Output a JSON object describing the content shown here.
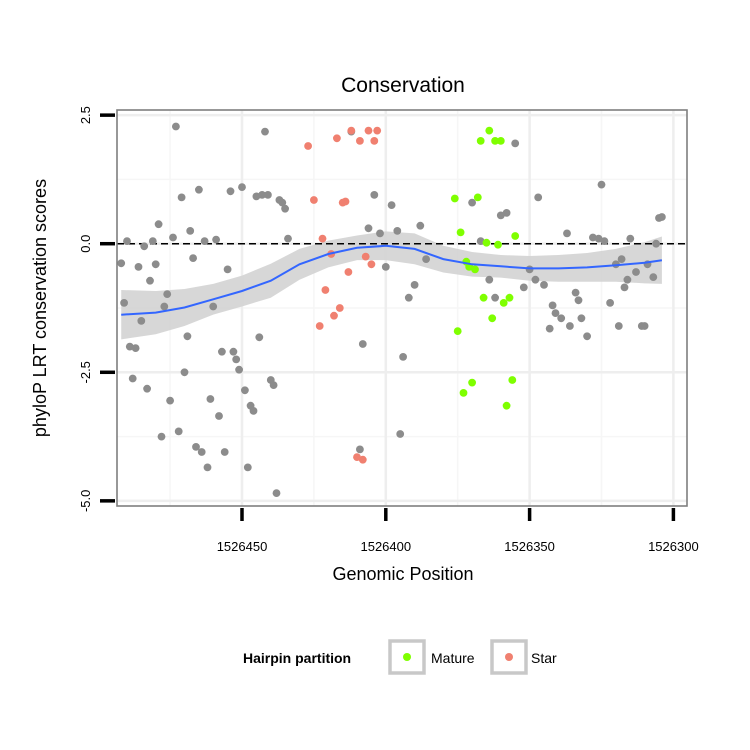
{
  "chart_data": {
    "type": "scatter",
    "title": "Conservation",
    "xlabel": "Genomic Position",
    "ylabel": "phyloP LRT conservation scores",
    "xlim": [
      1526493,
      1526303
    ],
    "x_reversed": true,
    "ylim": [
      -5.1,
      2.6
    ],
    "x_ticks": [
      1526450,
      1526400,
      1526350,
      1526300
    ],
    "x_tick_labels": [
      "1526450",
      "1526400",
      "1526350",
      "1526300"
    ],
    "y_ticks": [
      -5.0,
      -2.5,
      0.0,
      2.5
    ],
    "y_tick_labels": [
      "-5.0",
      "-2.5",
      "0.0",
      "2.5"
    ],
    "grid": true,
    "reference_line": {
      "y": 0,
      "style": "dashed",
      "color": "#000000"
    },
    "legend": {
      "title": "Hairpin partition",
      "position": "bottom",
      "entries": [
        {
          "label": "Mature",
          "color": "#7FFF00"
        },
        {
          "label": "Star",
          "color": "#F08070"
        }
      ]
    },
    "colors": {
      "other": "#8C8C8C",
      "mature": "#7FFF00",
      "star": "#F08070",
      "smooth": "#3366FF",
      "ribbon": "#D3D3D3"
    },
    "series": [
      {
        "group": "other",
        "points": [
          [
            1526492,
            -0.38
          ],
          [
            1526491,
            -1.15
          ],
          [
            1526490,
            0.05
          ],
          [
            1526489,
            -2.0
          ],
          [
            1526488,
            -2.62
          ],
          [
            1526487,
            -2.03
          ],
          [
            1526486,
            -0.45
          ],
          [
            1526485,
            -1.5
          ],
          [
            1526484,
            -0.05
          ],
          [
            1526483,
            -2.82
          ],
          [
            1526482,
            -0.72
          ],
          [
            1526481,
            0.05
          ],
          [
            1526480,
            -0.4
          ],
          [
            1526479,
            0.38
          ],
          [
            1526478,
            -3.75
          ],
          [
            1526477,
            -1.22
          ],
          [
            1526476,
            -0.98
          ],
          [
            1526475,
            -3.05
          ],
          [
            1526474,
            0.12
          ],
          [
            1526473,
            2.28
          ],
          [
            1526472,
            -3.65
          ],
          [
            1526471,
            0.9
          ],
          [
            1526470,
            -2.5
          ],
          [
            1526469,
            -1.8
          ],
          [
            1526468,
            0.25
          ],
          [
            1526467,
            -0.28
          ],
          [
            1526466,
            -3.95
          ],
          [
            1526465,
            1.05
          ],
          [
            1526464,
            -4.05
          ],
          [
            1526463,
            0.05
          ],
          [
            1526462,
            -4.35
          ],
          [
            1526461,
            -3.02
          ],
          [
            1526460,
            -1.22
          ],
          [
            1526459,
            0.08
          ],
          [
            1526458,
            -3.35
          ],
          [
            1526457,
            -2.1
          ],
          [
            1526456,
            -4.05
          ],
          [
            1526455,
            -0.5
          ],
          [
            1526454,
            1.02
          ],
          [
            1526453,
            -2.1
          ],
          [
            1526452,
            -2.25
          ],
          [
            1526451,
            -2.45
          ],
          [
            1526450,
            1.1
          ],
          [
            1526449,
            -2.85
          ],
          [
            1526448,
            -4.35
          ],
          [
            1526447,
            -3.15
          ],
          [
            1526446,
            -3.25
          ],
          [
            1526445,
            0.92
          ],
          [
            1526444,
            -1.82
          ],
          [
            1526443,
            0.95
          ],
          [
            1526442,
            2.18
          ],
          [
            1526441,
            0.95
          ],
          [
            1526440,
            -2.65
          ],
          [
            1526439,
            -2.75
          ],
          [
            1526438,
            -4.85
          ],
          [
            1526437,
            0.85
          ],
          [
            1526436,
            0.8
          ],
          [
            1526435,
            0.68
          ],
          [
            1526434,
            0.1
          ],
          [
            1526412,
            2.18
          ],
          [
            1526409,
            -4.0
          ],
          [
            1526408,
            -1.95
          ],
          [
            1526406,
            0.3
          ],
          [
            1526404,
            0.95
          ],
          [
            1526402,
            0.2
          ],
          [
            1526400,
            -0.45
          ],
          [
            1526398,
            0.75
          ],
          [
            1526396,
            0.25
          ],
          [
            1526395,
            -3.7
          ],
          [
            1526394,
            -2.2
          ],
          [
            1526392,
            -1.05
          ],
          [
            1526390,
            -0.8
          ],
          [
            1526388,
            0.35
          ],
          [
            1526386,
            -0.3
          ],
          [
            1526370,
            0.8
          ],
          [
            1526367,
            0.05
          ],
          [
            1526364,
            -0.7
          ],
          [
            1526362,
            -1.05
          ],
          [
            1526360,
            0.55
          ],
          [
            1526358,
            0.6
          ],
          [
            1526355,
            1.95
          ],
          [
            1526352,
            -0.85
          ],
          [
            1526350,
            -0.5
          ],
          [
            1526348,
            -0.7
          ],
          [
            1526347,
            0.9
          ],
          [
            1526345,
            -0.8
          ],
          [
            1526343,
            -1.65
          ],
          [
            1526342,
            -1.2
          ],
          [
            1526341,
            -1.35
          ],
          [
            1526339,
            -1.45
          ],
          [
            1526337,
            0.2
          ],
          [
            1526336,
            -1.6
          ],
          [
            1526334,
            -0.95
          ],
          [
            1526332,
            -1.45
          ],
          [
            1526330,
            -1.8
          ],
          [
            1526328,
            0.12
          ],
          [
            1526326,
            0.1
          ],
          [
            1526324,
            0.05
          ],
          [
            1526322,
            -1.15
          ],
          [
            1526320,
            -0.4
          ],
          [
            1526319,
            -1.6
          ],
          [
            1526317,
            -0.85
          ],
          [
            1526315,
            0.1
          ],
          [
            1526313,
            -0.55
          ],
          [
            1526311,
            -1.6
          ],
          [
            1526310,
            -1.6
          ],
          [
            1526309,
            -0.4
          ],
          [
            1526307,
            -0.65
          ],
          [
            1526306,
            0.0
          ],
          [
            1526305,
            0.5
          ],
          [
            1526304,
            0.52
          ],
          [
            1526325,
            1.15
          ],
          [
            1526318,
            -0.3
          ],
          [
            1526316,
            -0.7
          ],
          [
            1526333,
            -1.1
          ]
        ]
      },
      {
        "group": "star",
        "points": [
          [
            1526427,
            1.9
          ],
          [
            1526425,
            0.85
          ],
          [
            1526423,
            -1.6
          ],
          [
            1526422,
            0.1
          ],
          [
            1526421,
            -0.9
          ],
          [
            1526419,
            -0.2
          ],
          [
            1526418,
            -1.4
          ],
          [
            1526417,
            2.05
          ],
          [
            1526416,
            -1.25
          ],
          [
            1526415,
            0.8
          ],
          [
            1526414,
            0.82
          ],
          [
            1526413,
            -0.55
          ],
          [
            1526412,
            2.2
          ],
          [
            1526410,
            -4.15
          ],
          [
            1526409,
            2.0
          ],
          [
            1526408,
            -4.2
          ],
          [
            1526407,
            -0.25
          ],
          [
            1526406,
            2.2
          ],
          [
            1526405,
            -0.4
          ],
          [
            1526404,
            2.0
          ],
          [
            1526403,
            2.2
          ]
        ]
      },
      {
        "group": "mature",
        "points": [
          [
            1526376,
            0.88
          ],
          [
            1526375,
            -1.7
          ],
          [
            1526374,
            0.22
          ],
          [
            1526373,
            -2.9
          ],
          [
            1526372,
            -0.35
          ],
          [
            1526371,
            -0.45
          ],
          [
            1526370,
            -2.7
          ],
          [
            1526369,
            -0.5
          ],
          [
            1526368,
            0.9
          ],
          [
            1526367,
            2.0
          ],
          [
            1526366,
            -1.05
          ],
          [
            1526365,
            0.02
          ],
          [
            1526364,
            2.2
          ],
          [
            1526363,
            -1.45
          ],
          [
            1526362,
            2.0
          ],
          [
            1526361,
            -0.02
          ],
          [
            1526360,
            2.0
          ],
          [
            1526359,
            -1.15
          ],
          [
            1526358,
            -3.15
          ],
          [
            1526357,
            -1.05
          ],
          [
            1526356,
            -2.65
          ],
          [
            1526355,
            0.15
          ]
        ]
      }
    ],
    "smooth": {
      "x": [
        1526492,
        1526480,
        1526470,
        1526460,
        1526450,
        1526440,
        1526430,
        1526420,
        1526410,
        1526400,
        1526390,
        1526380,
        1526370,
        1526360,
        1526350,
        1526340,
        1526330,
        1526320,
        1526310,
        1526304
      ],
      "y": [
        -1.38,
        -1.34,
        -1.24,
        -1.08,
        -0.92,
        -0.72,
        -0.4,
        -0.2,
        -0.08,
        -0.04,
        -0.1,
        -0.3,
        -0.4,
        -0.44,
        -0.48,
        -0.48,
        -0.46,
        -0.42,
        -0.37,
        -0.32
      ],
      "se": [
        0.48,
        0.42,
        0.36,
        0.3,
        0.3,
        0.33,
        0.3,
        0.26,
        0.24,
        0.28,
        0.3,
        0.26,
        0.24,
        0.22,
        0.24,
        0.26,
        0.28,
        0.32,
        0.4,
        0.46
      ]
    }
  }
}
